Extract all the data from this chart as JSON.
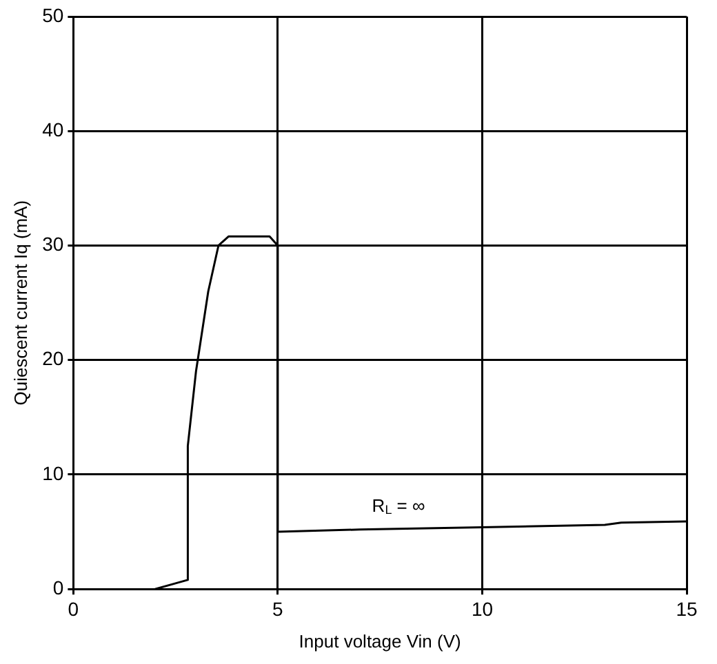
{
  "chart_data": {
    "type": "line",
    "xlabel": "Input voltage Vin (V)",
    "ylabel": "Quiescent current Iq (mA)",
    "series": [
      {
        "color": "#000000",
        "x": [
          2.0,
          2.5,
          2.8,
          2.8,
          3.0,
          3.3,
          3.55,
          3.8,
          4.8,
          5.0,
          5.0,
          7.0,
          10.0,
          13.0,
          13.4,
          15.0
        ],
        "values": [
          0,
          0.5,
          0.8,
          12.5,
          19,
          26,
          30,
          30.8,
          30.8,
          30,
          5.0,
          5.2,
          5.4,
          5.6,
          5.8,
          5.9
        ]
      }
    ],
    "xlim": [
      0,
      15
    ],
    "xticks": [
      0,
      5,
      10,
      15
    ],
    "ylim": [
      0,
      50
    ],
    "yticks": [
      0,
      10,
      20,
      30,
      40,
      50
    ],
    "grid": true,
    "legend": false,
    "marker": "none",
    "line_style": "solid",
    "annotations": [
      "R$_{L}$ = ∞"
    ]
  }
}
